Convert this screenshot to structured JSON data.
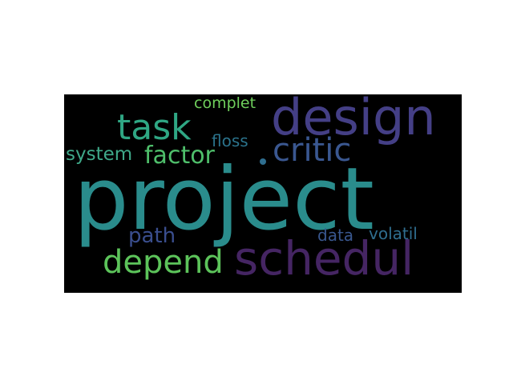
{
  "colors": {
    "background": "#000000",
    "page": "#ffffff"
  },
  "words": [
    {
      "text": "project",
      "color": "#2a8c8c"
    },
    {
      "text": "design",
      "color": "#443f86"
    },
    {
      "text": "schedul",
      "color": "#452563"
    },
    {
      "text": "task",
      "color": "#2fa784"
    },
    {
      "text": "critic",
      "color": "#3a5790"
    },
    {
      "text": "depend",
      "color": "#5cc35a"
    },
    {
      "text": "factor",
      "color": "#4fbf6b"
    },
    {
      "text": "path",
      "color": "#3a4e8e"
    },
    {
      "text": "system",
      "color": "#3fa989"
    },
    {
      "text": "floss",
      "color": "#2b738c"
    },
    {
      "text": "complet",
      "color": "#6fcf5c"
    },
    {
      "text": "data",
      "color": "#39578e"
    },
    {
      "text": "volatil",
      "color": "#2f6e8f"
    }
  ]
}
